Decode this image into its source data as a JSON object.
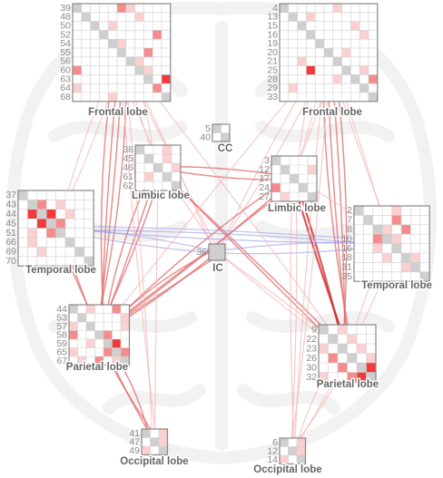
{
  "colors": {
    "edge_strong": "#cc1f1f",
    "edge_mid": "#e06a6a",
    "edge_light": "#f4b8b8",
    "edge_blue": "#8f95e6",
    "cell_strong": "#ef3b3b",
    "cell_mid": "#f58b8b",
    "cell_light": "#fbd0d0",
    "cell_diag": "#cfcfcf",
    "brain_bg": "#e9e9e9"
  },
  "matrices": [
    {
      "id": "frontal-left",
      "label": "Frontal lobe",
      "rows": [
        "39",
        "48",
        "50",
        "52",
        "54",
        "55",
        "56",
        "60",
        "63",
        "64",
        "68"
      ],
      "cells": [
        [
          0,
          5,
          2
        ],
        [
          0,
          6,
          1
        ],
        [
          1,
          7,
          1
        ],
        [
          2,
          4,
          1
        ],
        [
          3,
          9,
          2
        ],
        [
          4,
          5,
          1
        ],
        [
          5,
          8,
          2
        ],
        [
          6,
          7,
          1
        ],
        [
          7,
          8,
          1
        ],
        [
          7,
          0,
          2
        ],
        [
          8,
          10,
          3
        ],
        [
          9,
          0,
          1
        ],
        [
          9,
          9,
          2
        ],
        [
          10,
          4,
          1
        ]
      ]
    },
    {
      "id": "frontal-right",
      "label": "Frontal lobe",
      "rows": [
        "4",
        "13",
        "15",
        "16",
        "19",
        "20",
        "21",
        "25",
        "28",
        "29",
        "33"
      ],
      "cells": [
        [
          0,
          6,
          1
        ],
        [
          1,
          3,
          1
        ],
        [
          2,
          8,
          1
        ],
        [
          3,
          9,
          1
        ],
        [
          5,
          7,
          1
        ],
        [
          6,
          2,
          1
        ],
        [
          7,
          3,
          3
        ],
        [
          7,
          9,
          1
        ],
        [
          8,
          6,
          1
        ],
        [
          8,
          10,
          2
        ],
        [
          9,
          1,
          1
        ]
      ]
    },
    {
      "id": "cc",
      "label": "CC",
      "rows": [
        "5",
        "40"
      ],
      "cells": []
    },
    {
      "id": "limbic-left",
      "label": "Limbic lobe",
      "rows": [
        "38",
        "45",
        "46",
        "61",
        "62"
      ],
      "cells": [
        [
          0,
          3,
          1
        ],
        [
          1,
          3,
          1
        ],
        [
          2,
          4,
          1
        ],
        [
          3,
          1,
          1
        ]
      ]
    },
    {
      "id": "limbic-right",
      "label": "Limbic lobe",
      "rows": [
        "3",
        "12",
        "17",
        "24",
        "27"
      ],
      "cells": [
        [
          1,
          4,
          1
        ],
        [
          3,
          0,
          2
        ],
        [
          4,
          1,
          1
        ]
      ]
    },
    {
      "id": "temporal-left",
      "label": "Temporal lobe",
      "rows": [
        "37",
        "43",
        "44",
        "45",
        "51",
        "66",
        "69",
        "70"
      ],
      "cells": [
        [
          1,
          2,
          2
        ],
        [
          2,
          3,
          3
        ],
        [
          2,
          1,
          3
        ],
        [
          3,
          2,
          3
        ],
        [
          3,
          4,
          2
        ],
        [
          4,
          3,
          2
        ],
        [
          1,
          4,
          1
        ],
        [
          4,
          1,
          1
        ],
        [
          5,
          1,
          1
        ],
        [
          2,
          5,
          1
        ],
        [
          6,
          2,
          1
        ]
      ]
    },
    {
      "id": "temporal-right",
      "label": "Temporal lobe",
      "rows": [
        "2",
        "7",
        "8",
        "10",
        "16",
        "18",
        "31",
        "35"
      ],
      "cells": [
        [
          0,
          4,
          1
        ],
        [
          1,
          4,
          2
        ],
        [
          2,
          3,
          1
        ],
        [
          2,
          5,
          2
        ],
        [
          3,
          2,
          2
        ],
        [
          3,
          4,
          1
        ],
        [
          4,
          2,
          1
        ],
        [
          5,
          3,
          1
        ],
        [
          5,
          6,
          1
        ],
        [
          6,
          5,
          1
        ]
      ]
    },
    {
      "id": "ic",
      "label": "IC",
      "rows": [
        "36"
      ],
      "cells": []
    },
    {
      "id": "parietal-left",
      "label": "Parietal lobe",
      "rows": [
        "44",
        "53",
        "57",
        "58",
        "59",
        "65",
        "67"
      ],
      "cells": [
        [
          0,
          2,
          1
        ],
        [
          0,
          5,
          2
        ],
        [
          1,
          6,
          1
        ],
        [
          2,
          0,
          1
        ],
        [
          2,
          6,
          1
        ],
        [
          3,
          0,
          2
        ],
        [
          3,
          4,
          2
        ],
        [
          4,
          2,
          1
        ],
        [
          4,
          5,
          3
        ],
        [
          5,
          0,
          1
        ],
        [
          5,
          4,
          2
        ],
        [
          5,
          6,
          2
        ],
        [
          6,
          1,
          1
        ],
        [
          6,
          3,
          2
        ],
        [
          6,
          5,
          1
        ]
      ]
    },
    {
      "id": "parietal-right",
      "label": "Parietal lobe",
      "rows": [
        "9",
        "22",
        "23",
        "26",
        "30",
        "32"
      ],
      "cells": [
        [
          0,
          2,
          1
        ],
        [
          1,
          3,
          1
        ],
        [
          2,
          0,
          1
        ],
        [
          2,
          4,
          1
        ],
        [
          3,
          1,
          2
        ],
        [
          3,
          5,
          1
        ],
        [
          4,
          2,
          2
        ],
        [
          4,
          5,
          3
        ],
        [
          5,
          0,
          1
        ],
        [
          5,
          3,
          2
        ],
        [
          5,
          4,
          3
        ]
      ]
    },
    {
      "id": "occipital-left",
      "label": "Occipital lobe",
      "rows": [
        "41",
        "47",
        "49"
      ],
      "cells": [
        [
          0,
          2,
          1
        ],
        [
          1,
          2,
          1
        ],
        [
          2,
          0,
          1
        ]
      ]
    },
    {
      "id": "occipital-right",
      "label": "Occipital lobe",
      "rows": [
        "6",
        "12",
        "14"
      ],
      "cells": [
        [
          0,
          2,
          1
        ],
        [
          1,
          2,
          1
        ],
        [
          2,
          0,
          1
        ]
      ]
    }
  ],
  "edges": [
    {
      "from": "frontal-left",
      "to": "parietal-left",
      "strength": 2,
      "count": 4
    },
    {
      "from": "frontal-left",
      "to": "limbic-left",
      "strength": 1,
      "count": 3
    },
    {
      "from": "frontal-left",
      "to": "temporal-left",
      "strength": 1,
      "count": 2
    },
    {
      "from": "frontal-left",
      "to": "ic",
      "strength": 1,
      "count": 2
    },
    {
      "from": "frontal-right",
      "to": "parietal-right",
      "strength": 2,
      "count": 4
    },
    {
      "from": "frontal-right",
      "to": "limbic-right",
      "strength": 1,
      "count": 3
    },
    {
      "from": "frontal-right",
      "to": "temporal-right",
      "strength": 1,
      "count": 2
    },
    {
      "from": "frontal-right",
      "to": "ic",
      "strength": 1,
      "count": 2
    },
    {
      "from": "limbic-left",
      "to": "parietal-left",
      "strength": 2,
      "count": 3
    },
    {
      "from": "limbic-left",
      "to": "limbic-right",
      "strength": 2,
      "count": 2
    },
    {
      "from": "limbic-left",
      "to": "parietal-right",
      "strength": 2,
      "count": 2
    },
    {
      "from": "limbic-left",
      "to": "ic",
      "strength": 1,
      "count": 1
    },
    {
      "from": "limbic-right",
      "to": "parietal-left",
      "strength": 2,
      "count": 3
    },
    {
      "from": "limbic-right",
      "to": "parietal-right",
      "strength": 3,
      "count": 2
    },
    {
      "from": "ic",
      "to": "parietal-left",
      "strength": 2,
      "count": 3
    },
    {
      "from": "ic",
      "to": "parietal-right",
      "strength": 1,
      "count": 2
    },
    {
      "from": "ic",
      "to": "temporal-left",
      "strength": 0,
      "count": 2
    },
    {
      "from": "ic",
      "to": "temporal-right",
      "strength": 0,
      "count": 2
    },
    {
      "from": "temporal-left",
      "to": "parietal-left",
      "strength": 2,
      "count": 2
    },
    {
      "from": "temporal-right",
      "to": "parietal-right",
      "strength": 1,
      "count": 2
    },
    {
      "from": "temporal-left",
      "to": "temporal-right",
      "strength": 0,
      "count": 3
    },
    {
      "from": "parietal-left",
      "to": "occipital-left",
      "strength": 2,
      "count": 3
    },
    {
      "from": "parietal-right",
      "to": "occipital-right",
      "strength": 1,
      "count": 3
    },
    {
      "from": "limbic-left",
      "to": "occipital-left",
      "strength": 1,
      "count": 1
    },
    {
      "from": "limbic-right",
      "to": "occipital-right",
      "strength": 1,
      "count": 2
    },
    {
      "from": "frontal-left",
      "to": "occipital-left",
      "strength": 1,
      "count": 2
    },
    {
      "from": "frontal-right",
      "to": "occipital-right",
      "strength": 1,
      "count": 2
    },
    {
      "from": "frontal-right",
      "to": "parietal-left",
      "strength": 1,
      "count": 1
    },
    {
      "from": "frontal-left",
      "to": "parietal-right",
      "strength": 1,
      "count": 1
    },
    {
      "from": "limbic-right",
      "to": "temporal-right",
      "strength": 1,
      "count": 1
    }
  ]
}
